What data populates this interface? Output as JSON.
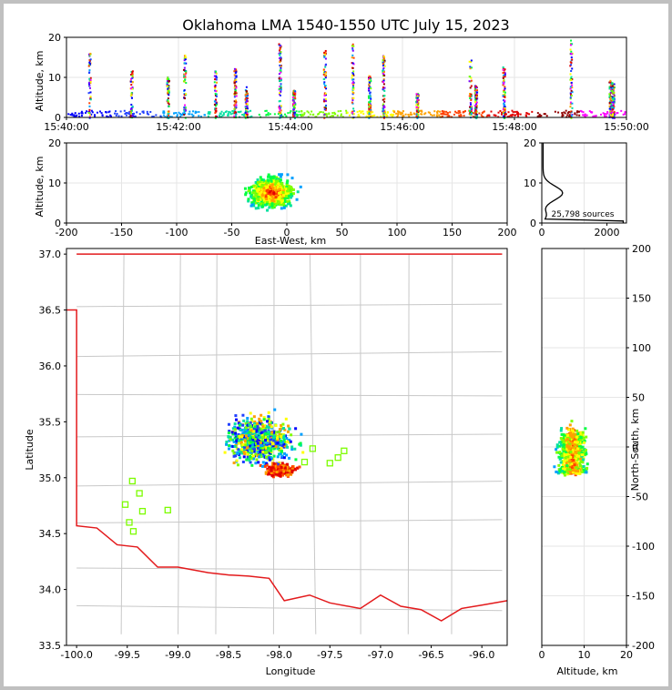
{
  "title": "Oklahoma LMA 1540-1550 UTC July 15, 2023",
  "colors": {
    "boundary": "#e31a1c",
    "counties": "#c8c8c8",
    "stations": "#7cfc00",
    "grid": "#e6e6e6"
  },
  "chart_data": [
    {
      "id": "time-height",
      "type": "scatter",
      "ylabel": "Altitude, km",
      "ylim": [
        0,
        20
      ],
      "yticks": [
        "0",
        "10",
        "20"
      ],
      "xticks": [
        "15:40:00",
        "15:42:00",
        "15:44:00",
        "15:46:00",
        "15:48:00",
        "15:50:00"
      ],
      "x_minutes_range": [
        0,
        10
      ],
      "flash_times_min": [
        0.4,
        1.15,
        1.8,
        2.1,
        2.65,
        3.0,
        3.2,
        3.8,
        4.05,
        4.6,
        5.1,
        5.4,
        5.65,
        6.25,
        7.2,
        7.3,
        7.8,
        9.0,
        9.7,
        9.75
      ]
    },
    {
      "id": "ew-altitude",
      "type": "scatter",
      "xlabel": "East-West, km",
      "ylabel": "Altitude, km",
      "xlim": [
        -200,
        200
      ],
      "ylim": [
        0,
        20
      ],
      "xticks": [
        "-200",
        "-150",
        "-100",
        "-50",
        "0",
        "50",
        "100",
        "150",
        "200"
      ],
      "yticks": [
        "0",
        "10",
        "20"
      ]
    },
    {
      "id": "altitude-histogram",
      "type": "line",
      "xlim": [
        0,
        2600
      ],
      "ylim": [
        0,
        20
      ],
      "xticks": [
        "0",
        "2000"
      ],
      "yticks": [
        "0",
        "10",
        "20"
      ],
      "annotation": "25,798 sources"
    },
    {
      "id": "plan-view",
      "type": "scatter",
      "xlabel": "Longitude",
      "ylabel": "Latitude",
      "xlim": [
        -100.1,
        -95.75
      ],
      "ylim": [
        33.5,
        37.05
      ],
      "xticks": [
        "-100.0",
        "-99.5",
        "-99.0",
        "-98.5",
        "-98.0",
        "-97.5",
        "-97.0",
        "-96.5",
        "-96.0"
      ],
      "yticks": [
        "33.5",
        "34.0",
        "34.5",
        "35.0",
        "35.5",
        "36.0",
        "36.5",
        "37.0"
      ],
      "stations": [
        {
          "lon": -99.45,
          "lat": 34.97
        },
        {
          "lon": -99.38,
          "lat": 34.86
        },
        {
          "lon": -99.52,
          "lat": 34.76
        },
        {
          "lon": -99.35,
          "lat": 34.7
        },
        {
          "lon": -99.48,
          "lat": 34.6
        },
        {
          "lon": -99.44,
          "lat": 34.52
        },
        {
          "lon": -99.1,
          "lat": 34.71
        },
        {
          "lon": -97.67,
          "lat": 35.26
        },
        {
          "lon": -97.5,
          "lat": 35.13
        },
        {
          "lon": -97.42,
          "lat": 35.18
        },
        {
          "lon": -97.36,
          "lat": 35.24
        },
        {
          "lon": -97.75,
          "lat": 35.14
        }
      ]
    },
    {
      "id": "altitude-ns",
      "type": "scatter",
      "xlabel": "Altitude, km",
      "ylabel": "North-South, km",
      "xlim": [
        0,
        20
      ],
      "ylim": [
        -200,
        200
      ],
      "xticks": [
        "0",
        "10",
        "20"
      ],
      "yticks": [
        "-200",
        "-150",
        "-100",
        "-50",
        "0",
        "50",
        "100",
        "150",
        "200"
      ]
    }
  ]
}
